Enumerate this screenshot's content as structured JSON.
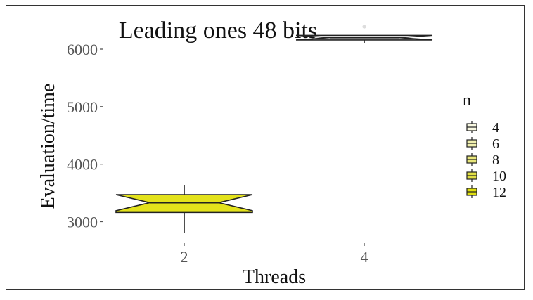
{
  "chart_data": {
    "type": "boxplot",
    "title": "Leading ones 48 bits",
    "xlabel": "Threads",
    "ylabel": "Evaluation/time",
    "categories": [
      "2",
      "4"
    ],
    "y_ticks": [
      3000,
      4000,
      5000,
      6000
    ],
    "y_tick_labels": [
      "3000",
      "4000",
      "5000",
      "6000"
    ],
    "ylim": [
      2700,
      6550
    ],
    "grid": false,
    "legend": {
      "title": "n",
      "position": "right",
      "entries": [
        {
          "label": "4",
          "color": "#f7f7e0"
        },
        {
          "label": "6",
          "color": "#f0efae"
        },
        {
          "label": "8",
          "color": "#e8e67a"
        },
        {
          "label": "10",
          "color": "#e1df45"
        },
        {
          "label": "12",
          "color": "#dede10"
        }
      ]
    },
    "boxes": [
      {
        "category": "2",
        "fill": "#e3e21b",
        "whisker_low": 2800,
        "q1": 3160,
        "median": 3330,
        "q3": 3470,
        "whisker_high": 3640,
        "outliers": []
      },
      {
        "category": "4",
        "fill": "#f4f4f4",
        "whisker_low": 6110,
        "q1": 6160,
        "median": 6200,
        "q3": 6240,
        "whisker_high": 6245,
        "outliers": [
          6390
        ]
      }
    ]
  }
}
